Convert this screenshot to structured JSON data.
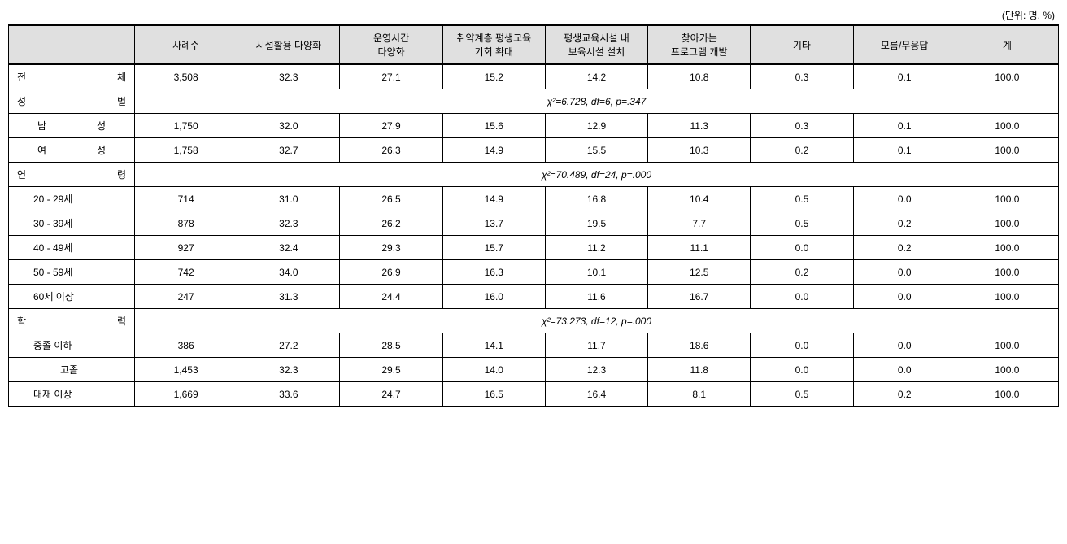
{
  "unit_label": "(단위: 명, %)",
  "columns": {
    "label": "",
    "c1": "사례수",
    "c2": "시설활용 다양화",
    "c3": "운영시간\n다양화",
    "c4": "취약계층 평생교육\n기회 확대",
    "c5": "평생교육시설 내\n보육시설 설치",
    "c6": "찾아가는\n프로그램 개발",
    "c7": "기타",
    "c8": "모름/무응답",
    "c9": "계"
  },
  "total": {
    "label_left": "전",
    "label_right": "체",
    "n": "3,508",
    "v1": "32.3",
    "v2": "27.1",
    "v3": "15.2",
    "v4": "14.2",
    "v5": "10.8",
    "v6": "0.3",
    "v7": "0.1",
    "v8": "100.0"
  },
  "sections": [
    {
      "label_left": "성",
      "label_right": "별",
      "stat": "χ²=6.728, df=6, p=.347",
      "rows": [
        {
          "label_left": "남",
          "label_right": "성",
          "indent": true,
          "n": "1,750",
          "v1": "32.0",
          "v2": "27.9",
          "v3": "15.6",
          "v4": "12.9",
          "v5": "11.3",
          "v6": "0.3",
          "v7": "0.1",
          "v8": "100.0"
        },
        {
          "label_left": "여",
          "label_right": "성",
          "indent": true,
          "n": "1,758",
          "v1": "32.7",
          "v2": "26.3",
          "v3": "14.9",
          "v4": "15.5",
          "v5": "10.3",
          "v6": "0.2",
          "v7": "0.1",
          "v8": "100.0"
        }
      ]
    },
    {
      "label_left": "연",
      "label_right": "령",
      "stat": "χ²=70.489, df=24, p=.000",
      "rows": [
        {
          "label": "20 - 29세",
          "n": "714",
          "v1": "31.0",
          "v2": "26.5",
          "v3": "14.9",
          "v4": "16.8",
          "v5": "10.4",
          "v6": "0.5",
          "v7": "0.0",
          "v8": "100.0"
        },
        {
          "label": "30 - 39세",
          "n": "878",
          "v1": "32.3",
          "v2": "26.2",
          "v3": "13.7",
          "v4": "19.5",
          "v5": "7.7",
          "v6": "0.5",
          "v7": "0.2",
          "v8": "100.0"
        },
        {
          "label": "40 - 49세",
          "n": "927",
          "v1": "32.4",
          "v2": "29.3",
          "v3": "15.7",
          "v4": "11.2",
          "v5": "11.1",
          "v6": "0.0",
          "v7": "0.2",
          "v8": "100.0"
        },
        {
          "label": "50 - 59세",
          "n": "742",
          "v1": "34.0",
          "v2": "26.9",
          "v3": "16.3",
          "v4": "10.1",
          "v5": "12.5",
          "v6": "0.2",
          "v7": "0.0",
          "v8": "100.0"
        },
        {
          "label": "60세 이상",
          "n": "247",
          "v1": "31.3",
          "v2": "24.4",
          "v3": "16.0",
          "v4": "11.6",
          "v5": "16.7",
          "v6": "0.0",
          "v7": "0.0",
          "v8": "100.0"
        }
      ]
    },
    {
      "label_left": "학",
      "label_right": "력",
      "stat": "χ²=73.273, df=12, p=.000",
      "rows": [
        {
          "label": "중졸 이하",
          "n": "386",
          "v1": "27.2",
          "v2": "28.5",
          "v3": "14.1",
          "v4": "11.7",
          "v5": "18.6",
          "v6": "0.0",
          "v7": "0.0",
          "v8": "100.0"
        },
        {
          "label": "고졸",
          "center": true,
          "n": "1,453",
          "v1": "32.3",
          "v2": "29.5",
          "v3": "14.0",
          "v4": "12.3",
          "v5": "11.8",
          "v6": "0.0",
          "v7": "0.0",
          "v8": "100.0"
        },
        {
          "label": "대재 이상",
          "n": "1,669",
          "v1": "33.6",
          "v2": "24.7",
          "v3": "16.5",
          "v4": "16.4",
          "v5": "8.1",
          "v6": "0.5",
          "v7": "0.2",
          "v8": "100.0"
        }
      ]
    }
  ],
  "style": {
    "header_bg": "#e0e0e0",
    "border_color": "#000000",
    "font_size_pt": 12
  }
}
